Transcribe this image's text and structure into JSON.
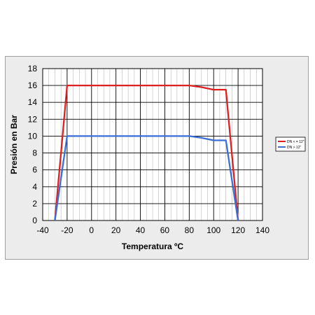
{
  "chart_data": {
    "type": "line",
    "title": "",
    "xlabel": "Temperatura ºC",
    "ylabel": "Presión en Bar",
    "xlim": [
      -40,
      140
    ],
    "ylim": [
      0,
      18
    ],
    "x_ticks": [
      -40,
      -20,
      0,
      20,
      40,
      60,
      80,
      100,
      120,
      140
    ],
    "y_ticks": [
      0,
      2,
      4,
      6,
      8,
      10,
      12,
      14,
      16,
      18
    ],
    "grid": true,
    "minor_x_step": 5,
    "legend_position": "right",
    "series": [
      {
        "name": "DN < = 12\"",
        "color": "#e02020",
        "points": [
          [
            -30,
            0
          ],
          [
            -20,
            16
          ],
          [
            80,
            16
          ],
          [
            90,
            15.8
          ],
          [
            100,
            15.5
          ],
          [
            110,
            15.5
          ],
          [
            120,
            0
          ]
        ]
      },
      {
        "name": "DN > 12\"",
        "color": "#3a6fd8",
        "points": [
          [
            -30,
            0
          ],
          [
            -20,
            10
          ],
          [
            80,
            10
          ],
          [
            90,
            9.8
          ],
          [
            100,
            9.5
          ],
          [
            110,
            9.5
          ],
          [
            120,
            0
          ]
        ]
      }
    ]
  }
}
